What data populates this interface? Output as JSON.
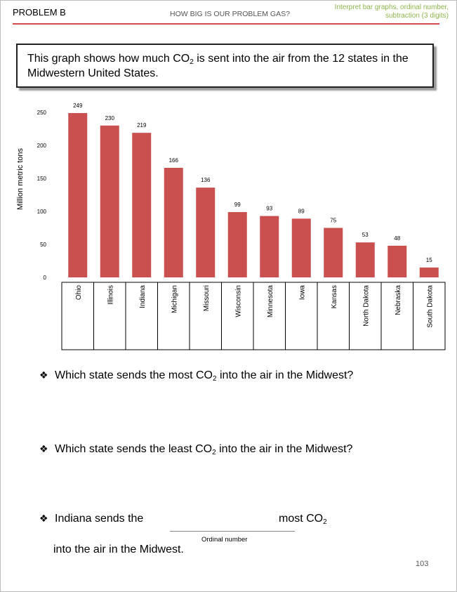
{
  "header": {
    "problem_label": "PROBLEM B",
    "title": "HOW BIG IS OUR PROBLEM GAS?",
    "skills": "Interpret bar graphs, ordinal number, subtraction (3 digits)"
  },
  "intro": {
    "text_before": "This graph shows how much CO",
    "sub": "2",
    "text_after": " is sent into the air from the 12 states in the Midwestern United States."
  },
  "chart_data": {
    "type": "bar",
    "ylabel": "Million metric tons",
    "xlabel": "",
    "ylim": [
      0,
      250
    ],
    "yticks": [
      0,
      50,
      100,
      150,
      200,
      250
    ],
    "categories": [
      "Ohio",
      "Illinois",
      "Indiana",
      "Michigan",
      "Missouri",
      "Wisconsin",
      "Minnesota",
      "Iowa",
      "Kansas",
      "North Dakota",
      "Nebraska",
      "South Dakota"
    ],
    "values": [
      249,
      230,
      219,
      166,
      136,
      99,
      93,
      89,
      75,
      53,
      48,
      15
    ],
    "bar_color": "#c9504f",
    "grid": false
  },
  "questions": [
    {
      "before": "Which state sends the most CO",
      "sub": "2",
      "after": " into the air in the Midwest?"
    },
    {
      "before": "Which state sends the least CO",
      "sub": "2",
      "after": " into the air in the Midwest?"
    }
  ],
  "fill_in": {
    "lead": "Indiana sends the",
    "tail_before": "most CO",
    "sub": "2",
    "line2": "into the air in the Midwest.",
    "blank_label": "Ordinal number"
  },
  "bullet_symbol": "❖",
  "page_number": "103"
}
